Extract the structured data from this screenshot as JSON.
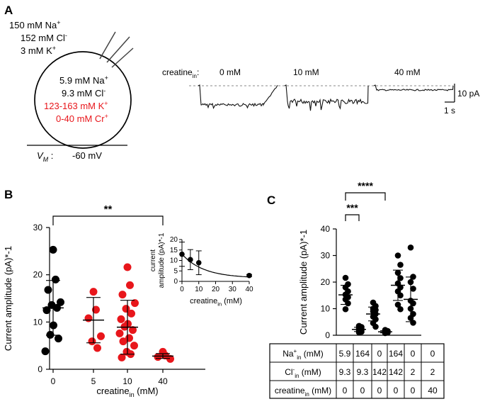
{
  "panelA": {
    "label": "A",
    "bath": [
      {
        "pre": "150 mM Na",
        "sup": "+"
      },
      {
        "pre": "152 mM Cl",
        "sup": "-"
      },
      {
        "pre": "3 mM K",
        "sup": "+"
      }
    ],
    "pipette": [
      {
        "pre": "5.9 mM Na",
        "sup": "+",
        "color": "#000000"
      },
      {
        "pre": "9.3 mM Cl",
        "sup": "-",
        "color": "#000000"
      },
      {
        "pre": "123-163 mM K",
        "sup": "+",
        "color": "#e8161b"
      },
      {
        "pre": "0-40 mM Cr",
        "sup": "+",
        "color": "#e8161b"
      }
    ],
    "vm_label": "V",
    "vm_sub": "M",
    "vm_colon": " :",
    "vm_value": "-60 mV",
    "creatine_label": "creatine",
    "creatine_sub": "in",
    "creatine_colon": ":",
    "traces": [
      "0 mM",
      "10 mM",
      "40 mM"
    ],
    "scale_y": "10 pA",
    "scale_x": "1 s"
  },
  "panelB": {
    "label": "B"
  },
  "panelC": {
    "label": "C"
  },
  "chart_data": [
    {
      "id": "B-main",
      "type": "scatter",
      "ylabel": "Current amplitude (pA)*-1",
      "xlabel": "creatine",
      "xlabel_sub": "in",
      "xlabel_unit": " (mM)",
      "categories": [
        "0",
        "5",
        "10",
        "40"
      ],
      "ylim": [
        0,
        30
      ],
      "yticks": [
        0,
        10,
        20,
        30
      ],
      "colors": [
        "#000000",
        "#e8161b",
        "#e8161b",
        "#e8161b"
      ],
      "points": [
        [
          25.3,
          19,
          16.8,
          14.2,
          13.6,
          13,
          12.5,
          9.3,
          7.3,
          6.5,
          3.8
        ],
        [
          16.4,
          12.6,
          10.8,
          7,
          5.9,
          4.5
        ],
        [
          21.6,
          17.8,
          15.8,
          14,
          12.8,
          11.8,
          10.6,
          9.6,
          9,
          8.3,
          7.6,
          6.6,
          5.9,
          5,
          3.7,
          3.2,
          2.5
        ],
        [
          3.7,
          2.9,
          2.6,
          2.2
        ]
      ],
      "mean": [
        13,
        10.4,
        8.9,
        2.8
      ],
      "sd": [
        5.8,
        4.8,
        5.7,
        0.5
      ],
      "significance": {
        "groups": [
          "0",
          "40"
        ],
        "label": "**"
      }
    },
    {
      "id": "B-inset",
      "type": "line",
      "ylabel_line1": "current",
      "ylabel_line2": "amplitude (pA)*-1",
      "xlabel": "creatine",
      "xlabel_sub": "in",
      "xlabel_unit": " (mM)",
      "x": [
        0,
        5,
        10,
        40
      ],
      "y": [
        13,
        10.4,
        8.9,
        2.8
      ],
      "err": [
        5.8,
        4.8,
        5.7,
        0.5
      ],
      "xlim": [
        0,
        40
      ],
      "xticks": [
        0,
        10,
        20,
        30,
        40
      ],
      "ylim": [
        0,
        20
      ],
      "yticks": [
        0,
        5,
        10,
        15,
        20
      ]
    },
    {
      "id": "C-main",
      "type": "scatter",
      "ylabel": "Current amplitude (pA)*-1",
      "ylim": [
        0,
        40
      ],
      "yticks": [
        0,
        10,
        20,
        30,
        40
      ],
      "points": [
        [
          21.6,
          19.2,
          18,
          16.5,
          15.3,
          14.3,
          13.5,
          12,
          9.8
        ],
        [
          3.5,
          3.1,
          2.8,
          2.5,
          2.2,
          1.9,
          1.6,
          1.3,
          1.1
        ],
        [
          12.3,
          11,
          10,
          9.5,
          9,
          8,
          7,
          6,
          4.6,
          3.2
        ],
        [
          2,
          1.6,
          1.3,
          1,
          0.8
        ],
        [
          30,
          26.5,
          23.5,
          21.5,
          19.5,
          18,
          16.5,
          15,
          11.5,
          9.8
        ],
        [
          33,
          22,
          20,
          17.5,
          13,
          12,
          10,
          8,
          6.5,
          4.7
        ]
      ],
      "mean": [
        15.2,
        2.2,
        8,
        1.3,
        18.8,
        13.5
      ],
      "sd": [
        3.6,
        0.8,
        2.6,
        0.4,
        5.7,
        8.4
      ],
      "significance": [
        {
          "groups": [
            0,
            1
          ],
          "label": "***"
        },
        {
          "groups": [
            0,
            3
          ],
          "label": "****"
        }
      ],
      "table": [
        {
          "label_pre": "Na",
          "label_sup": "+",
          "label_sub": "in",
          "label_post": " (mM)",
          "values": [
            "5.9",
            "164",
            "0",
            "164",
            "0",
            "0"
          ]
        },
        {
          "label_pre": "Cl",
          "label_sup": "-",
          "label_sub": "in",
          "label_post": " (mM)",
          "values": [
            "9.3",
            "9.3",
            "142",
            "142",
            "2",
            "2"
          ]
        },
        {
          "label_pre": "creatine",
          "label_sup": "",
          "label_sub": "in",
          "label_post": " (mM)",
          "values": [
            "0",
            "0",
            "0",
            "0",
            "0",
            "40"
          ]
        }
      ]
    }
  ]
}
